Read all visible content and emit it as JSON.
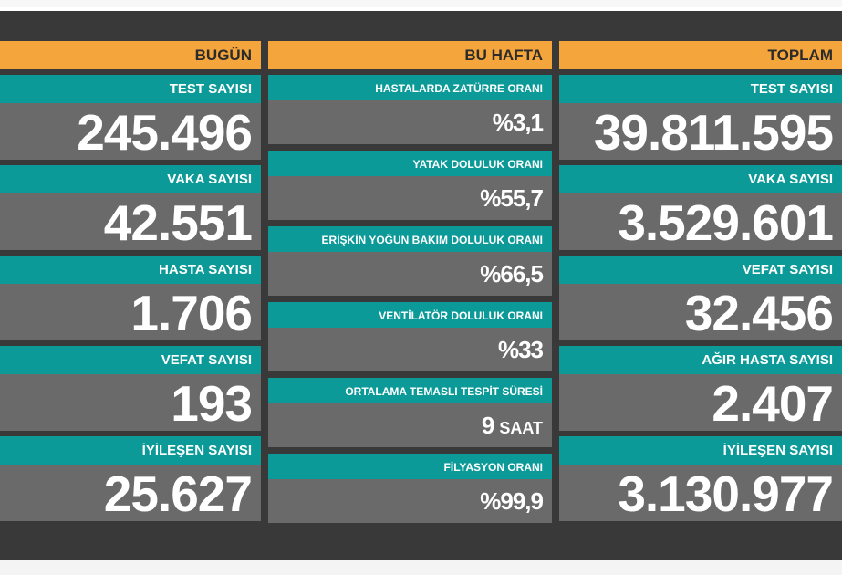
{
  "columns": {
    "today": {
      "header": "BUGÜN",
      "items": [
        {
          "label": "TEST SAYISI",
          "value": "245.496"
        },
        {
          "label": "VAKA SAYISI",
          "value": "42.551"
        },
        {
          "label": "HASTA SAYISI",
          "value": "1.706"
        },
        {
          "label": "VEFAT SAYISI",
          "value": "193"
        },
        {
          "label": "İYİLEŞEN SAYISI",
          "value": "25.627"
        }
      ]
    },
    "week": {
      "header": "BU HAFTA",
      "items": [
        {
          "label": "HASTALARDA ZATÜRRE ORANI",
          "value": "%3,1"
        },
        {
          "label": "YATAK DOLULUK ORANI",
          "value": "%55,7"
        },
        {
          "label": "ERİŞKİN YOĞUN BAKIM DOLULUK ORANI",
          "value": "%66,5"
        },
        {
          "label": "VENTİLATÖR DOLULUK ORANI",
          "value": "%33"
        },
        {
          "label": "ORTALAMA TEMASLI TESPİT SÜRESİ",
          "value": "9",
          "unit": "SAAT"
        },
        {
          "label": "FİLYASYON ORANI",
          "value": "%99,9"
        }
      ]
    },
    "total": {
      "header": "TOPLAM",
      "items": [
        {
          "label": "TEST SAYISI",
          "value": "39.811.595"
        },
        {
          "label": "VAKA SAYISI",
          "value": "3.529.601"
        },
        {
          "label": "VEFAT SAYISI",
          "value": "32.456"
        },
        {
          "label": "AĞIR HASTA SAYISI",
          "value": "2.407"
        },
        {
          "label": "İYİLEŞEN SAYISI",
          "value": "3.130.977"
        }
      ]
    }
  }
}
